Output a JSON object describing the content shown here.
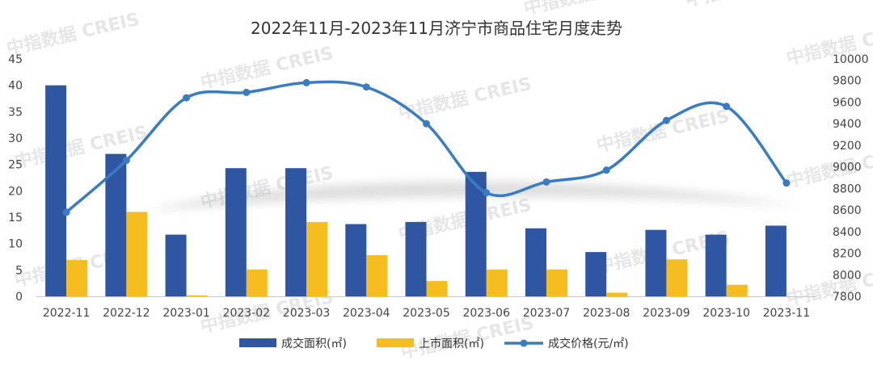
{
  "watermark": "中指数据 CREIS",
  "chart_data": {
    "type": "bar",
    "title": "2022年11月-2023年11月济宁市商品住宅月度走势",
    "categories": [
      "2022-11",
      "2022-12",
      "2023-01",
      "2023-02",
      "2023-03",
      "2023-04",
      "2023-05",
      "2023-06",
      "2023-07",
      "2023-08",
      "2023-09",
      "2023-10",
      "2023-11"
    ],
    "series": [
      {
        "name": "成交面积(㎡)",
        "type": "bar",
        "axis": "left",
        "color": "#2e56a3",
        "values": [
          40.0,
          27.0,
          11.7,
          24.3,
          24.3,
          13.7,
          14.1,
          23.6,
          12.9,
          8.4,
          12.6,
          11.7,
          13.4
        ]
      },
      {
        "name": "上市面积(㎡)",
        "type": "bar",
        "axis": "left",
        "color": "#f5bd1f",
        "values": [
          6.9,
          16.0,
          0.2,
          5.1,
          14.1,
          7.8,
          2.9,
          5.1,
          5.1,
          0.7,
          7.0,
          2.2,
          0
        ]
      },
      {
        "name": "成交价格(元/㎡)",
        "type": "line",
        "smooth": true,
        "axis": "right",
        "color": "#3a7cc4",
        "values": [
          8580,
          9060,
          9640,
          9690,
          9780,
          9740,
          9400,
          8760,
          8860,
          8970,
          9430,
          9560,
          8850
        ]
      }
    ],
    "y_left": {
      "min": 0,
      "max": 45,
      "step": 5
    },
    "y_right": {
      "min": 7800,
      "max": 10000,
      "step": 200
    },
    "legend_position": "bottom",
    "grid": false
  }
}
